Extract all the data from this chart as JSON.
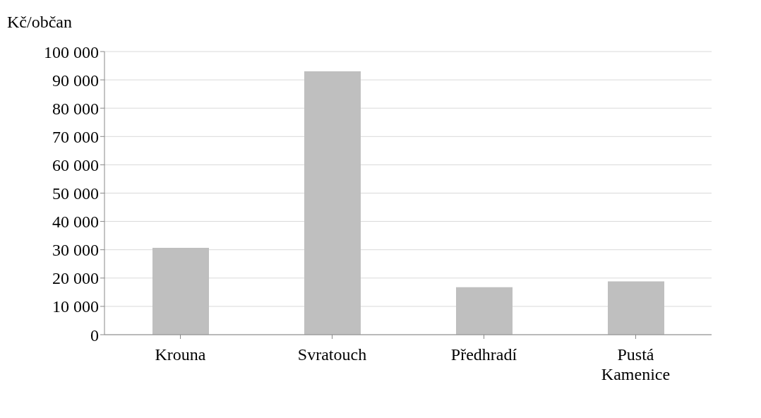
{
  "chart_data": {
    "type": "bar",
    "ylabel": "Kč/občan",
    "categories": [
      "Krouna",
      "Svratouch",
      "Předhradí",
      "Pustá Kamenice"
    ],
    "values": [
      30700,
      93000,
      16800,
      18800
    ],
    "color": "#bfbfbf",
    "ylim": [
      0,
      100000
    ],
    "yticks": [
      {
        "value": 0,
        "label": "0"
      },
      {
        "value": 10000,
        "label": "10 000"
      },
      {
        "value": 20000,
        "label": "20 000"
      },
      {
        "value": 30000,
        "label": "30 000"
      },
      {
        "value": 40000,
        "label": "40 000"
      },
      {
        "value": 50000,
        "label": "50 000"
      },
      {
        "value": 60000,
        "label": "60 000"
      },
      {
        "value": 70000,
        "label": "70 000"
      },
      {
        "value": 80000,
        "label": "80 000"
      },
      {
        "value": 90000,
        "label": "90 000"
      },
      {
        "value": 100000,
        "label": "100 000"
      }
    ],
    "grid": "y"
  }
}
